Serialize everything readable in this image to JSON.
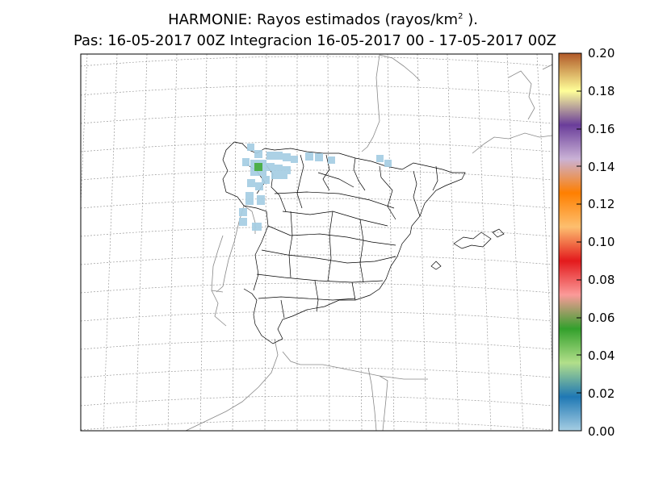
{
  "title": {
    "line1_prefix": "HARMONIE: Rayos estimados  (rayos/km",
    "line1_sup": "2",
    "line1_suffix": " ).",
    "line2": "Pas: 16-05-2017 00Z Integracion 16-05-2017 00 - 17-05-2017 00Z"
  },
  "colorbar": {
    "labels": [
      "0.00",
      "0.02",
      "0.04",
      "0.06",
      "0.08",
      "0.10",
      "0.12",
      "0.14",
      "0.16",
      "0.18",
      "0.20"
    ],
    "min": 0.0,
    "max": 0.2,
    "colors": [
      "#a6cee3",
      "#1f78b4",
      "#b2df8a",
      "#33a02c",
      "#fb9a99",
      "#e31a1c",
      "#fdbf6f",
      "#ff7f00",
      "#cab2d6",
      "#6a3d9a",
      "#ffff99",
      "#b15928"
    ]
  },
  "lightning_cells": [
    {
      "value": 0.002,
      "region": "Galicia / Asturias coast"
    },
    {
      "value": 0.05,
      "region": "Galicia interior"
    }
  ],
  "colors": {
    "coastline": "#888888",
    "borders": "#000000",
    "grid": "#9a9a9a",
    "low_cell": "#a6cee3",
    "peak_cell": "#4daf4a"
  }
}
